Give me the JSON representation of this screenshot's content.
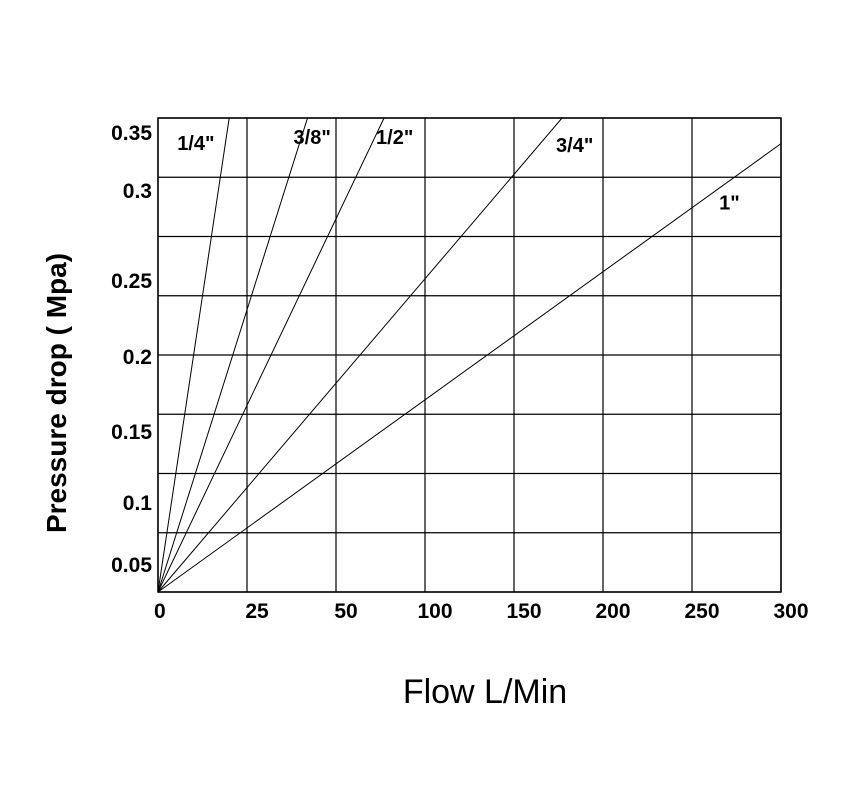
{
  "chart_data": {
    "type": "line",
    "xlabel": "Flow L/Min",
    "ylabel": "Pressure drop ( Mpa)",
    "x_ticks": [
      "0",
      "25",
      "50",
      "100",
      "150",
      "200",
      "250",
      "300"
    ],
    "y_ticks": [
      "0.05",
      "0.1",
      "0.15",
      "0.2",
      "0.25",
      "0.3",
      "0.35"
    ],
    "grid": true,
    "series": [
      {
        "name": "1/4\"",
        "points": [
          [
            0,
            0
          ],
          [
            20,
            0.35
          ]
        ]
      },
      {
        "name": "3/8\"",
        "points": [
          [
            0,
            0
          ],
          [
            42,
            0.35
          ]
        ]
      },
      {
        "name": "1/2\"",
        "points": [
          [
            0,
            0
          ],
          [
            77,
            0.35
          ]
        ]
      },
      {
        "name": "3/4\"",
        "points": [
          [
            0,
            0
          ],
          [
            177,
            0.35
          ]
        ]
      },
      {
        "name": "1\"",
        "points": [
          [
            0,
            0
          ],
          [
            320,
            0.35
          ]
        ]
      }
    ]
  }
}
